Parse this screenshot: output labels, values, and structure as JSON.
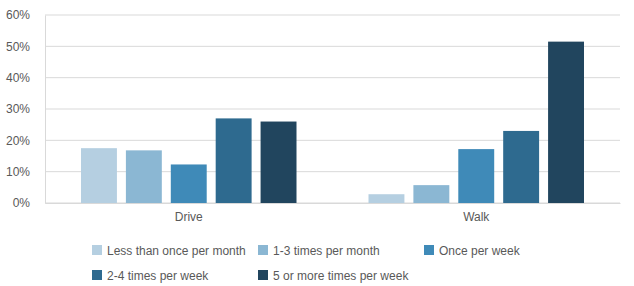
{
  "chart_data": {
    "type": "bar",
    "categories": [
      "Drive",
      "Walk"
    ],
    "series": [
      {
        "name": "Less than once per month",
        "color": "#b5cfe1",
        "values": [
          17.5,
          2.8
        ]
      },
      {
        "name": "1-3 times per month",
        "color": "#8bb7d3",
        "values": [
          16.8,
          5.7
        ]
      },
      {
        "name": "Once per week",
        "color": "#3f8ab8",
        "values": [
          12.3,
          17.2
        ]
      },
      {
        "name": "2-4 times per week",
        "color": "#2e6a8f",
        "values": [
          27,
          23
        ]
      },
      {
        "name": "5 or more times per week",
        "color": "#21455e",
        "values": [
          26,
          51.5
        ]
      }
    ],
    "ylim": [
      0,
      60
    ],
    "yticks": [
      {
        "value": 0,
        "label": "0%"
      },
      {
        "value": 10,
        "label": "10%"
      },
      {
        "value": 20,
        "label": "20%"
      },
      {
        "value": 30,
        "label": "30%"
      },
      {
        "value": 40,
        "label": "40%"
      },
      {
        "value": 50,
        "label": "50%"
      },
      {
        "value": 60,
        "label": "60%"
      }
    ],
    "grid": true,
    "legend": "bottom"
  }
}
